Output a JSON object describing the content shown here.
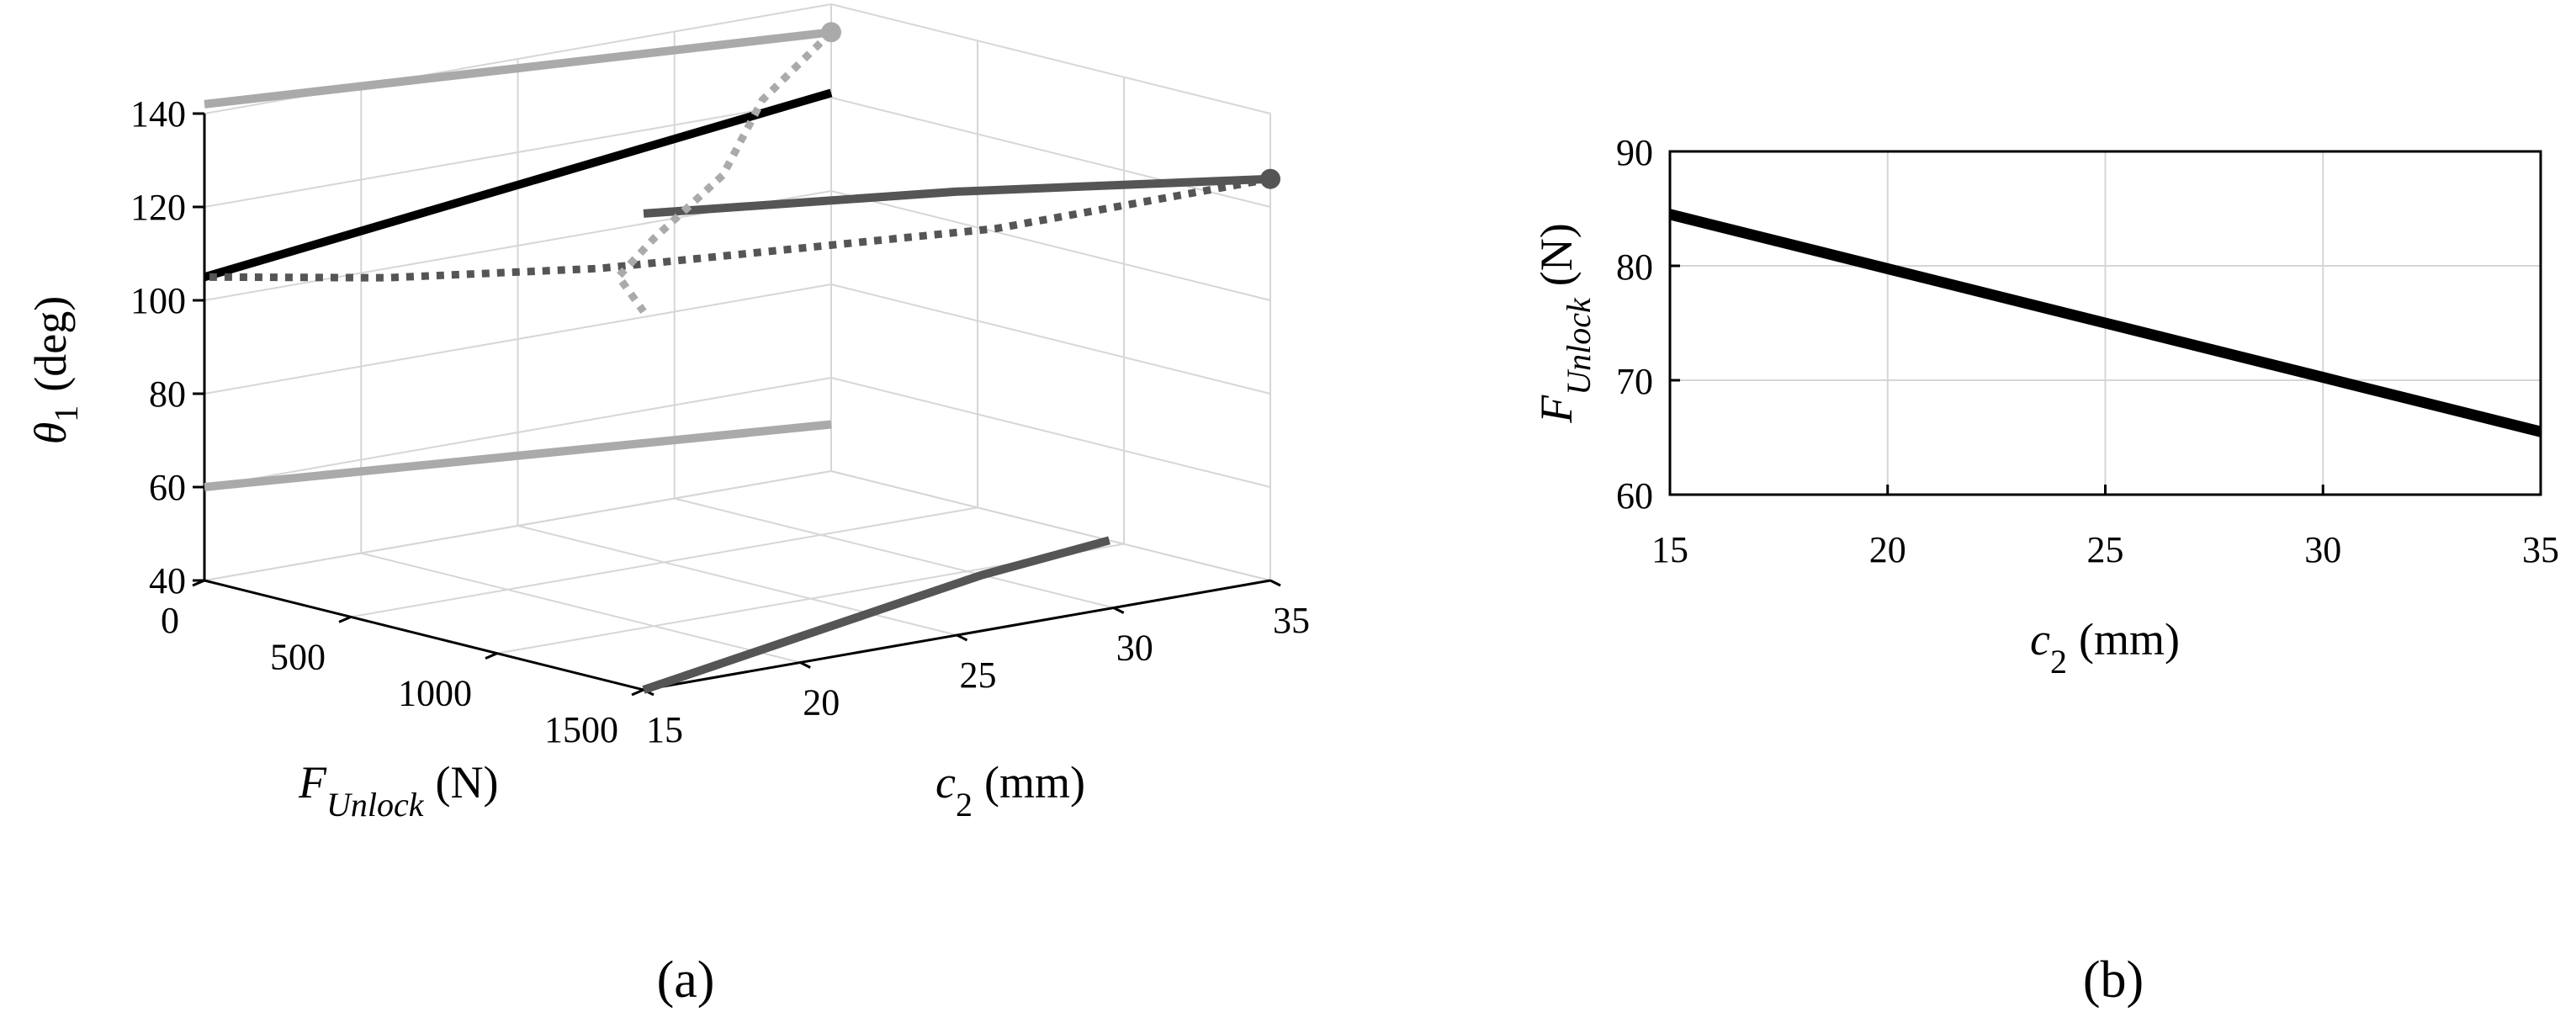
{
  "chart_data": [
    {
      "type": "line",
      "panel": "a",
      "title": "",
      "caption": "(a)",
      "projection": "3d",
      "axes": {
        "x": {
          "label": "F",
          "label_sub": "Unlock",
          "label_unit": "(N)",
          "lim": [
            0,
            1500
          ],
          "ticks": [
            "0",
            "500",
            "1000",
            "1500"
          ]
        },
        "y": {
          "label": "c",
          "label_sub": "2",
          "label_unit": "(mm)",
          "lim": [
            15,
            35
          ],
          "ticks": [
            "15",
            "20",
            "25",
            "30",
            "35"
          ]
        },
        "z": {
          "label": "θ",
          "label_sub": "1",
          "label_unit": "(deg)",
          "lim": [
            40,
            140
          ],
          "ticks": [
            "40",
            "60",
            "80",
            "100",
            "120",
            "140"
          ]
        }
      },
      "grid": true,
      "series": [
        {
          "style": "solid",
          "color": "#000000",
          "points": [
            [
              0,
              15,
              105
            ],
            [
              0,
              35,
              121
            ]
          ]
        },
        {
          "style": "solid",
          "color": "#555555",
          "marker_end": "circle",
          "points": [
            [
              1500,
              15,
              142
            ],
            [
              1500,
              25,
              135
            ],
            [
              1500,
              35,
              126
            ]
          ]
        },
        {
          "style": "dotted",
          "color": "#555555",
          "points": [
            [
              1500,
              35,
              126
            ],
            [
              1100,
              30,
              115
            ],
            [
              600,
              22,
              108
            ],
            [
              300,
              18,
              106
            ],
            [
              0,
              15,
              105
            ]
          ]
        },
        {
          "style": "solid",
          "color": "#aaaaaa",
          "marker_end": "circle",
          "points": [
            [
              0,
              15,
              142
            ],
            [
              0,
              25,
              138
            ],
            [
              0,
              35,
              134
            ]
          ]
        },
        {
          "style": "dotted",
          "color": "#aaaaaa",
          "points": [
            [
              0,
              35,
              134
            ],
            [
              300,
              30,
              130
            ],
            [
              700,
              25,
              126
            ],
            [
              1000,
              20,
              123
            ],
            [
              1200,
              17,
              121.5
            ],
            [
              1500,
              15,
              121
            ]
          ]
        },
        {
          "style": "solid",
          "color": "#555555",
          "plane": "floor",
          "points": [
            [
              1500,
              15,
              40
            ],
            [
              1350,
              20,
              40
            ],
            [
              1200,
              25,
              40
            ],
            [
              1050,
              30,
              40
            ],
            [
              950,
              35,
              40
            ]
          ]
        },
        {
          "style": "solid",
          "color": "#aaaaaa",
          "plane": "back-wall",
          "points": [
            [
              0,
              15,
              60
            ],
            [
              0,
              35,
              50
            ]
          ]
        }
      ]
    },
    {
      "type": "line",
      "panel": "b",
      "title": "",
      "caption": "(b)",
      "x": [
        15,
        20,
        25,
        30,
        35
      ],
      "xlim": [
        15,
        35
      ],
      "ylim": [
        60,
        90
      ],
      "xticks": [
        "15",
        "20",
        "25",
        "30",
        "35"
      ],
      "yticks": [
        "60",
        "70",
        "80",
        "90"
      ],
      "xlabel": {
        "main": "c",
        "sub": "2",
        "unit": "(mm)"
      },
      "ylabel": {
        "main": "F",
        "sub": "Unlock",
        "unit": "(N)"
      },
      "grid": true,
      "series": [
        {
          "color": "#000000",
          "values": [
            84.5,
            79.75,
            75,
            70.25,
            65.5
          ]
        }
      ]
    }
  ]
}
